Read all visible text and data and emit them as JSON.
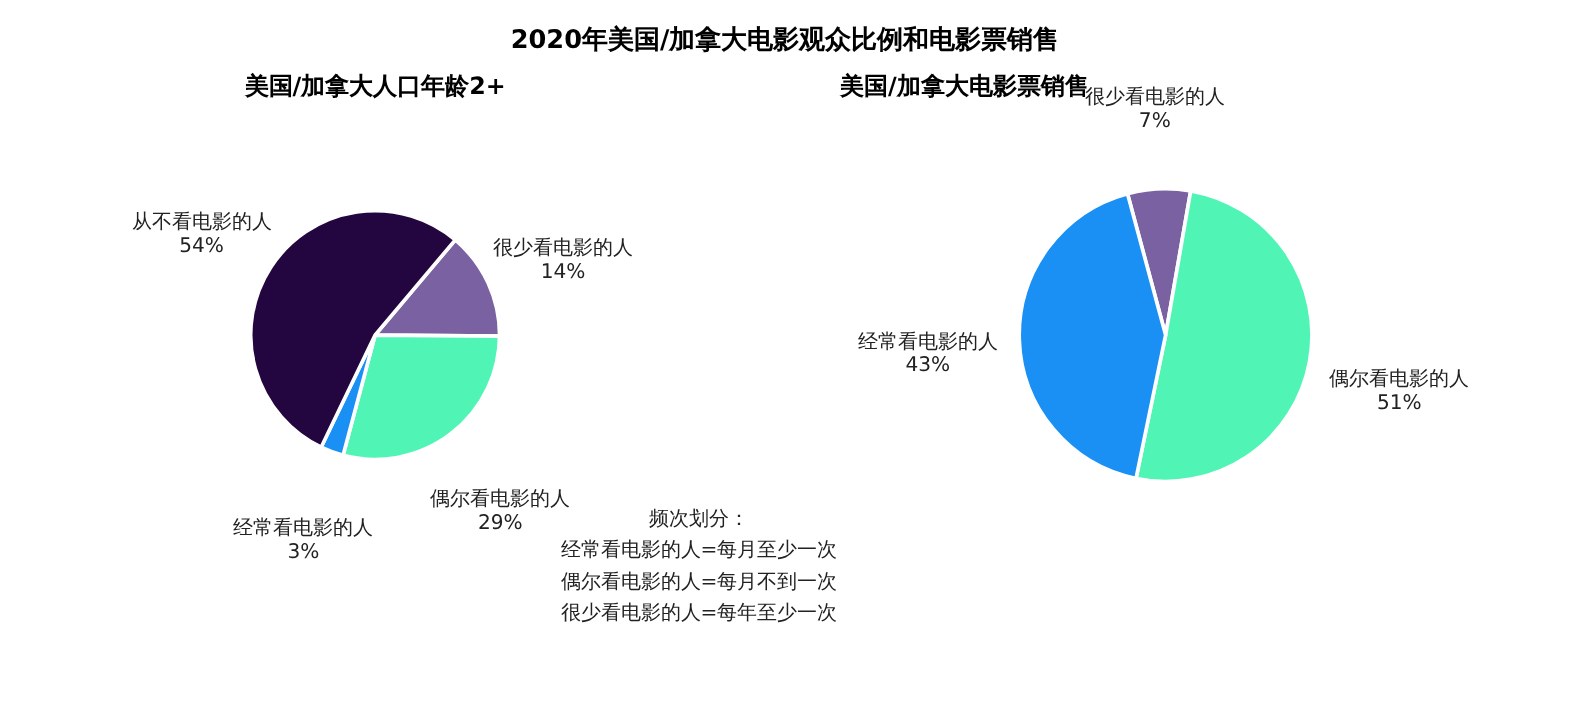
{
  "chart_data": [
    {
      "type": "pie",
      "title": "2020年美国/加拿大电影观众比例和电影票销售",
      "subtitle": "美国/加拿大人口年龄2+",
      "categories": [
        "很少看电影的人",
        "偶尔看电影的人",
        "经常看电影的人",
        "从不看电影的人"
      ],
      "values": [
        14,
        29,
        3,
        54
      ],
      "colors": [
        "#7a62a2",
        "#50f5b5",
        "#1a90f5",
        "#23063f"
      ],
      "value_labels": [
        "14%",
        "29%",
        "3%",
        "54%"
      ],
      "annotations": [
        "频次划分：",
        "经常看电影的人=每月至少一次",
        "偶尔看电影的人=每月不到一次",
        "很少看电影的人=每年至少一次"
      ]
    },
    {
      "type": "pie",
      "title": "美国/加拿大电影票销售",
      "categories": [
        "很少看电影的人",
        "偶尔看电影的人",
        "经常看电影的人"
      ],
      "values": [
        7,
        51,
        43
      ],
      "colors": [
        "#7a62a2",
        "#50f5b5",
        "#1a90f5"
      ],
      "value_labels": [
        "7%",
        "51%",
        "43%"
      ]
    }
  ]
}
